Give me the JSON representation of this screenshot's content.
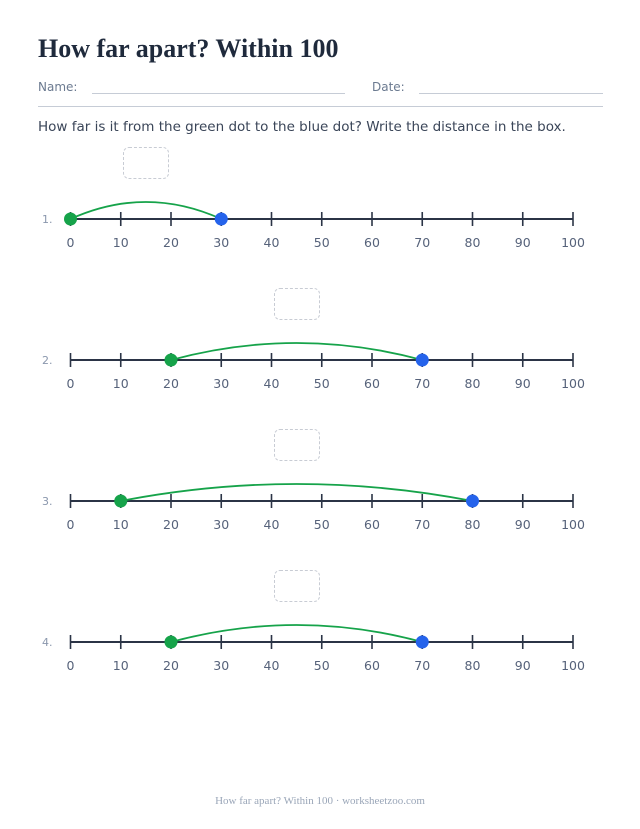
{
  "title": "How far apart? Within 100",
  "fields": {
    "name_label": "Name:",
    "date_label": "Date:"
  },
  "instructions": "How far is it from the green dot to the blue dot? Write the distance in the box.",
  "number_line": {
    "min": 0,
    "max": 100,
    "step": 10,
    "tick_labels": [
      "0",
      "10",
      "20",
      "30",
      "40",
      "50",
      "60",
      "70",
      "80",
      "90",
      "100"
    ]
  },
  "problems": [
    {
      "number": "1.",
      "start": 0,
      "end": 30,
      "answer": ""
    },
    {
      "number": "2.",
      "start": 20,
      "end": 70,
      "answer": ""
    },
    {
      "number": "3.",
      "start": 10,
      "end": 80,
      "answer": ""
    },
    {
      "number": "4.",
      "start": 20,
      "end": 70,
      "answer": ""
    }
  ],
  "colors": {
    "start_dot": "#16a34a",
    "end_dot": "#2563eb",
    "arc": "#16a34a",
    "line": "#2b3446",
    "tick_label": "#56627a",
    "problem_number": "#8a97ad"
  },
  "footer": "How far apart? Within 100 · worksheetzoo.com"
}
